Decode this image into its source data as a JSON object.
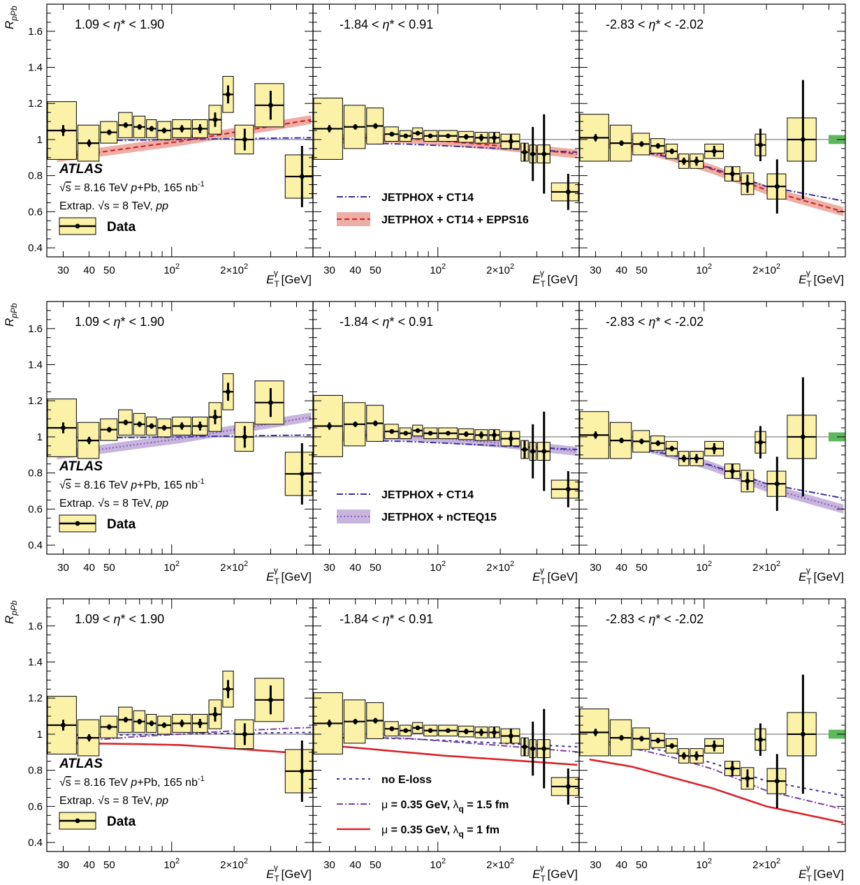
{
  "colors": {
    "box_fill": "#fbf2a8",
    "box_stroke": "#000000",
    "epps16": "#d9232a",
    "epps16_band": "#e89a8f",
    "nCTEQ15": "#8e63b5",
    "nCTEQ15_band": "#b9a3d6",
    "ct14": "#3a2f9a",
    "eloss_1p5": "#7a3fa0",
    "eloss_1": "#d9232a",
    "norm": "#5cb85c",
    "unity": "#999999"
  },
  "labels": {
    "ylabel_main": "R",
    "ylabel_sub": "pPb",
    "xlabel_main": "E",
    "xlabel_sub": "T",
    "xlabel_sup": "γ",
    "xlabel_unit": "[GeV]",
    "atlas": "ATLAS",
    "info_line1_pre": "s",
    "info_line1_mid": " = 8.16 TeV ",
    "info_line1_ital": "p",
    "info_line1_post": "+Pb, 165 nb",
    "info_line1_sup": "-1",
    "info_line2_pre": "Extrap. ",
    "info_line2_s": "s",
    "info_line2_mid": " = 8 TeV, ",
    "info_line2_ital": "pp",
    "data_legend": "Data"
  },
  "chart_data": {
    "type": "scatter",
    "xlabel": "E_T^γ [GeV]",
    "ylabel": "R_pPb",
    "x_scale": "log",
    "xlim": [
      25,
      480
    ],
    "ylim": [
      0.35,
      1.75
    ],
    "x_ticks": [
      {
        "value": 30,
        "label": "30"
      },
      {
        "value": 40,
        "label": "40"
      },
      {
        "value": 50,
        "label": "50"
      },
      {
        "value": 100,
        "label": "10",
        "sup": "2"
      },
      {
        "value": 200,
        "label": "2×10",
        "sup": "2"
      }
    ],
    "y_ticks": [
      {
        "value": 0.4,
        "label": "0.4"
      },
      {
        "value": 0.6,
        "label": "0.6"
      },
      {
        "value": 0.8,
        "label": "0.8"
      },
      {
        "value": 1.0,
        "label": "1"
      },
      {
        "value": 1.2,
        "label": "1.2"
      },
      {
        "value": 1.4,
        "label": "1.4"
      },
      {
        "value": 1.6,
        "label": "1.6"
      }
    ],
    "eta_bins": [
      {
        "label_pre": "1.09 < ",
        "label_eta": "η",
        "label_post": "* < 1.90",
        "points": [
          {
            "x": 30,
            "lo": 25,
            "hi": 35,
            "y": 1.05,
            "stat": 0.03,
            "syst": 0.16
          },
          {
            "x": 40,
            "lo": 35,
            "hi": 45,
            "y": 0.98,
            "stat": 0.02,
            "syst": 0.1
          },
          {
            "x": 50,
            "lo": 45,
            "hi": 55,
            "y": 1.04,
            "stat": 0.015,
            "syst": 0.06
          },
          {
            "x": 60,
            "lo": 55,
            "hi": 65,
            "y": 1.08,
            "stat": 0.015,
            "syst": 0.07
          },
          {
            "x": 70,
            "lo": 65,
            "hi": 75,
            "y": 1.07,
            "stat": 0.015,
            "syst": 0.06
          },
          {
            "x": 80,
            "lo": 75,
            "hi": 85,
            "y": 1.06,
            "stat": 0.015,
            "syst": 0.05
          },
          {
            "x": 92,
            "lo": 85,
            "hi": 100,
            "y": 1.05,
            "stat": 0.015,
            "syst": 0.05
          },
          {
            "x": 112,
            "lo": 100,
            "hi": 125,
            "y": 1.06,
            "stat": 0.02,
            "syst": 0.05
          },
          {
            "x": 137,
            "lo": 125,
            "hi": 150,
            "y": 1.06,
            "stat": 0.025,
            "syst": 0.05
          },
          {
            "x": 162,
            "lo": 150,
            "hi": 175,
            "y": 1.11,
            "stat": 0.04,
            "syst": 0.08
          },
          {
            "x": 187,
            "lo": 175,
            "hi": 200,
            "y": 1.25,
            "stat": 0.05,
            "syst": 0.1
          },
          {
            "x": 225,
            "lo": 200,
            "hi": 250,
            "y": 1.0,
            "stat": 0.06,
            "syst": 0.08
          },
          {
            "x": 300,
            "lo": 250,
            "hi": 350,
            "y": 1.19,
            "stat": 0.08,
            "syst": 0.12
          },
          {
            "x": 425,
            "lo": 350,
            "hi": 480,
            "y": 0.795,
            "stat": 0.17,
            "syst": 0.12
          }
        ],
        "norm_box": false,
        "curves": [
          {
            "top": {
              "label": "JETPHOX + CT14",
              "y": [
                0.995,
                0.995,
                0.997,
                1.0,
                1.005,
                1.01
              ]
            },
            "mid": {
              "y": [
                0.995,
                0.995,
                0.997,
                1.0,
                1.005,
                1.01
              ]
            },
            "bot": {
              "y": [
                0.995,
                0.995,
                0.997,
                1.0,
                1.005,
                1.01
              ]
            }
          },
          {
            "top": {
              "y": [
                0.92,
                0.95,
                0.98,
                1.0,
                1.03,
                1.06
              ]
            },
            "mid": {
              "y": [
                0.9,
                0.93,
                0.96,
                0.99,
                1.04,
                1.11
              ]
            },
            "bot": {
              "y": [
                0.95,
                0.948,
                0.945,
                0.94,
                0.92,
                0.89
              ]
            }
          }
        ]
      },
      {
        "label_pre": "-1.84 < ",
        "label_eta": "η",
        "label_post": "* < 0.91",
        "points": [
          {
            "x": 30,
            "lo": 25,
            "hi": 35,
            "y": 1.06,
            "stat": 0.02,
            "syst": 0.17
          },
          {
            "x": 40,
            "lo": 35,
            "hi": 45,
            "y": 1.07,
            "stat": 0.015,
            "syst": 0.12
          },
          {
            "x": 50,
            "lo": 45,
            "hi": 55,
            "y": 1.075,
            "stat": 0.015,
            "syst": 0.1
          },
          {
            "x": 60,
            "lo": 55,
            "hi": 65,
            "y": 1.03,
            "stat": 0.01,
            "syst": 0.04
          },
          {
            "x": 70,
            "lo": 65,
            "hi": 75,
            "y": 1.02,
            "stat": 0.01,
            "syst": 0.03
          },
          {
            "x": 80,
            "lo": 75,
            "hi": 85,
            "y": 1.035,
            "stat": 0.01,
            "syst": 0.03
          },
          {
            "x": 92,
            "lo": 85,
            "hi": 100,
            "y": 1.02,
            "stat": 0.01,
            "syst": 0.03
          },
          {
            "x": 112,
            "lo": 100,
            "hi": 125,
            "y": 1.02,
            "stat": 0.01,
            "syst": 0.03
          },
          {
            "x": 137,
            "lo": 125,
            "hi": 150,
            "y": 1.015,
            "stat": 0.015,
            "syst": 0.03
          },
          {
            "x": 162,
            "lo": 150,
            "hi": 175,
            "y": 1.01,
            "stat": 0.02,
            "syst": 0.03
          },
          {
            "x": 187,
            "lo": 175,
            "hi": 200,
            "y": 1.01,
            "stat": 0.03,
            "syst": 0.03
          },
          {
            "x": 225,
            "lo": 200,
            "hi": 250,
            "y": 0.99,
            "stat": 0.04,
            "syst": 0.04
          },
          {
            "x": 262,
            "lo": 250,
            "hi": 275,
            "y": 0.93,
            "stat": 0.05,
            "syst": 0.05
          },
          {
            "x": 287,
            "lo": 275,
            "hi": 300,
            "y": 0.92,
            "stat": 0.15,
            "syst": 0.05
          },
          {
            "x": 325,
            "lo": 300,
            "hi": 350,
            "y": 0.92,
            "stat": 0.22,
            "syst": 0.05
          },
          {
            "x": 425,
            "lo": 350,
            "hi": 480,
            "y": 0.71,
            "stat": 0.1,
            "syst": 0.05
          }
        ],
        "norm_box": false,
        "curves": [
          {
            "top": {
              "y": [
                0.98,
                0.98,
                0.975,
                0.965,
                0.95,
                0.93
              ]
            },
            "mid": {
              "y": [
                0.99,
                0.99,
                0.985,
                0.97,
                0.955,
                0.93
              ]
            },
            "bot": {
              "y": [
                0.97,
                0.96,
                0.95,
                0.93,
                0.91,
                0.88
              ]
            }
          },
          {
            "top": {
              "y": [
                0.99,
                1.0,
                1.0,
                0.985,
                0.96,
                0.92
              ]
            },
            "mid": {
              "y": [
                1.0,
                1.01,
                1.005,
                0.99,
                0.965,
                0.92
              ]
            },
            "bot": {
              "y": [
                0.94,
                0.92,
                0.9,
                0.88,
                0.86,
                0.83
              ]
            }
          }
        ],
        "legends": [
          [
            {
              "label": "JETPHOX + CT14"
            },
            {
              "label": "JETPHOX + CT14 + EPPS16"
            }
          ],
          [
            {
              "label": "JETPHOX + CT14"
            },
            {
              "label": "JETPHOX + nCTEQ15"
            }
          ],
          [
            {
              "label": "no E-loss"
            },
            {
              "label_pre": "μ",
              "label_mid": " = 0.35 GeV,  ",
              "label_lam": "λ",
              "label_sub": "q",
              "label_post": " = 1.5 fm"
            },
            {
              "label_pre": "μ",
              "label_mid": " = 0.35 GeV,  ",
              "label_lam": "λ",
              "label_sub": "q",
              "label_post": " = 1 fm"
            }
          ]
        ]
      },
      {
        "label_pre": "-2.83 < ",
        "label_eta": "η",
        "label_post": "* < -2.02",
        "points": [
          {
            "x": 30,
            "lo": 25,
            "hi": 35,
            "y": 1.01,
            "stat": 0.02,
            "syst": 0.13
          },
          {
            "x": 40,
            "lo": 35,
            "hi": 45,
            "y": 0.98,
            "stat": 0.015,
            "syst": 0.1
          },
          {
            "x": 50,
            "lo": 45,
            "hi": 55,
            "y": 0.975,
            "stat": 0.015,
            "syst": 0.06
          },
          {
            "x": 60,
            "lo": 55,
            "hi": 65,
            "y": 0.965,
            "stat": 0.015,
            "syst": 0.04
          },
          {
            "x": 70,
            "lo": 65,
            "hi": 75,
            "y": 0.935,
            "stat": 0.015,
            "syst": 0.04
          },
          {
            "x": 80,
            "lo": 75,
            "hi": 85,
            "y": 0.88,
            "stat": 0.02,
            "syst": 0.04
          },
          {
            "x": 92,
            "lo": 85,
            "hi": 100,
            "y": 0.88,
            "stat": 0.025,
            "syst": 0.04
          },
          {
            "x": 112,
            "lo": 100,
            "hi": 125,
            "y": 0.935,
            "stat": 0.03,
            "syst": 0.04
          },
          {
            "x": 137,
            "lo": 125,
            "hi": 150,
            "y": 0.81,
            "stat": 0.04,
            "syst": 0.04
          },
          {
            "x": 162,
            "lo": 150,
            "hi": 175,
            "y": 0.755,
            "stat": 0.05,
            "syst": 0.06
          },
          {
            "x": 187,
            "lo": 175,
            "hi": 200,
            "y": 0.97,
            "stat": 0.09,
            "syst": 0.06
          },
          {
            "x": 225,
            "lo": 200,
            "hi": 250,
            "y": 0.74,
            "stat": 0.15,
            "syst": 0.07
          },
          {
            "x": 300,
            "lo": 250,
            "hi": 350,
            "y": 1.0,
            "stat": 0.33,
            "syst": 0.12
          }
        ],
        "norm_box": true,
        "curves": [
          {
            "top": {
              "y": [
                0.97,
                0.94,
                0.9,
                0.84,
                0.74,
                0.66
              ]
            },
            "mid": {
              "y": [
                0.99,
                0.95,
                0.89,
                0.8,
                0.66,
                0.55
              ]
            },
            "bot": {
              "y": [
                0.93,
                0.89,
                0.84,
                0.78,
                0.67,
                0.59
              ]
            }
          },
          {
            "top": {
              "y": [
                0.98,
                0.95,
                0.9,
                0.83,
                0.7,
                0.58
              ]
            },
            "mid": {
              "y": [
                0.985,
                0.96,
                0.905,
                0.835,
                0.72,
                0.6
              ]
            },
            "bot": {
              "y": [
                0.86,
                0.82,
                0.76,
                0.7,
                0.6,
                0.51
              ]
            }
          }
        ]
      }
    ]
  }
}
